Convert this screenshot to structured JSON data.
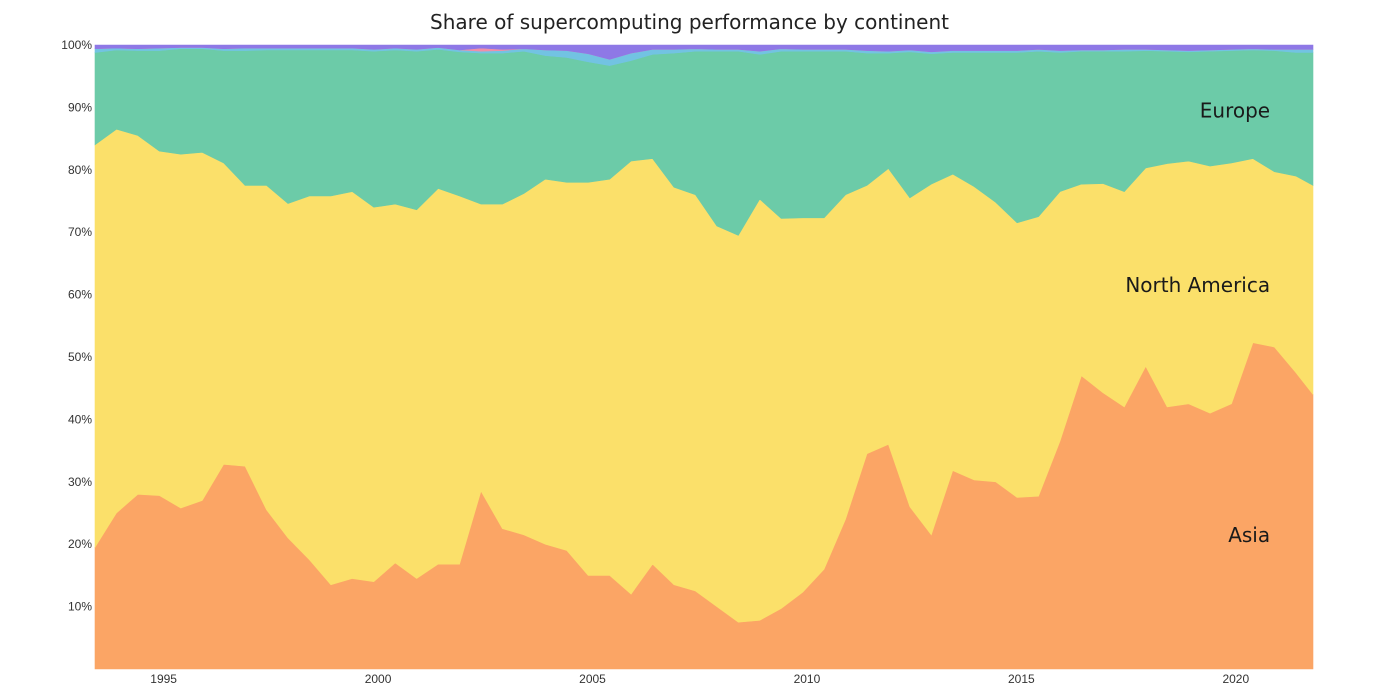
{
  "chart_data": {
    "type": "area",
    "stacked": true,
    "normalized": true,
    "title": "Share of supercomputing performance by continent",
    "xlabel": "",
    "ylabel": "",
    "xlim": [
      1993.4,
      2021.8
    ],
    "ylim": [
      0,
      100
    ],
    "grid": false,
    "legend": "none",
    "x_ticks": [
      {
        "value": 1995,
        "label": "1995"
      },
      {
        "value": 2000,
        "label": "2000"
      },
      {
        "value": 2005,
        "label": "2005"
      },
      {
        "value": 2010,
        "label": "2010"
      },
      {
        "value": 2015,
        "label": "2015"
      },
      {
        "value": 2020,
        "label": "2020"
      }
    ],
    "y_ticks": [
      {
        "value": 10,
        "label": "10%"
      },
      {
        "value": 20,
        "label": "20%"
      },
      {
        "value": 30,
        "label": "30%"
      },
      {
        "value": 40,
        "label": "40%"
      },
      {
        "value": 50,
        "label": "50%"
      },
      {
        "value": 60,
        "label": "60%"
      },
      {
        "value": 70,
        "label": "70%"
      },
      {
        "value": 80,
        "label": "80%"
      },
      {
        "value": 90,
        "label": "90%"
      },
      {
        "value": 100,
        "label": "100%"
      }
    ],
    "x": [
      1993.4,
      1993.9,
      1994.4,
      1994.9,
      1995.4,
      1995.9,
      1996.4,
      1996.9,
      1997.4,
      1997.9,
      1998.4,
      1998.9,
      1999.4,
      1999.9,
      2000.4,
      2000.9,
      2001.4,
      2001.9,
      2002.4,
      2002.9,
      2003.4,
      2003.9,
      2004.4,
      2004.9,
      2005.4,
      2005.9,
      2006.4,
      2006.9,
      2007.4,
      2007.9,
      2008.4,
      2008.9,
      2009.4,
      2009.9,
      2010.4,
      2010.9,
      2011.4,
      2011.9,
      2012.4,
      2012.9,
      2013.4,
      2013.9,
      2014.4,
      2014.9,
      2015.4,
      2015.9,
      2016.4,
      2016.9,
      2017.4,
      2017.9,
      2018.4,
      2018.9,
      2019.4,
      2019.9,
      2020.4,
      2020.9,
      2021.4,
      2021.8
    ],
    "series": [
      {
        "name": "Asia",
        "color": "#fba565",
        "values": [
          19.5,
          25,
          28,
          27.8,
          25.8,
          27,
          32.8,
          32.5,
          25.5,
          21,
          17.5,
          13.5,
          14.5,
          14,
          17,
          14.5,
          16.8,
          16.8,
          28.5,
          22.5,
          21.5,
          20,
          19,
          15,
          15,
          12,
          16.8,
          13.5,
          12.5,
          10,
          7.5,
          7.8,
          9.7,
          12.3,
          16,
          24,
          34.5,
          36,
          26,
          21.5,
          31.8,
          30.3,
          30,
          27.5,
          27.7,
          36.5,
          47,
          44.3,
          42,
          48.5,
          42,
          42.5,
          41,
          42.5,
          52.3,
          51.6,
          47.5,
          44
        ]
      },
      {
        "name": "North America",
        "color": "#fbe06a",
        "values": [
          64.5,
          61.5,
          57.5,
          55.2,
          56.7,
          55.8,
          48.3,
          45,
          52,
          53.6,
          58.3,
          62.3,
          62,
          60,
          57.5,
          59.1,
          60.2,
          59,
          46,
          52,
          54.7,
          58.5,
          59,
          63,
          63.5,
          69.4,
          65,
          63.7,
          63.5,
          61,
          62,
          67.5,
          62.5,
          60,
          56.3,
          52,
          43,
          44.2,
          49.5,
          56.2,
          47.5,
          47,
          44.8,
          44,
          44.8,
          40,
          30.7,
          33.5,
          34.5,
          31.8,
          39,
          38.9,
          39.6,
          38.6,
          29.5,
          28.1,
          31.5,
          33.5
        ]
      },
      {
        "name": "Europe",
        "color": "#6ccba8",
        "values": [
          14.8,
          12.7,
          13.6,
          16.1,
          16.9,
          16.6,
          18,
          21.6,
          21.7,
          24.6,
          23.4,
          23.4,
          22.7,
          25,
          24.7,
          25.4,
          22.3,
          23.1,
          24.2,
          24.2,
          22.8,
          19.8,
          20,
          19.3,
          18.2,
          16.1,
          16.7,
          21.5,
          23,
          28,
          29.5,
          23.2,
          26.8,
          26.7,
          26.7,
          23,
          21.2,
          18.5,
          23.4,
          20.9,
          19.5,
          21.5,
          24,
          27.3,
          26.5,
          22.3,
          21.3,
          21.2,
          22.5,
          18.8,
          18,
          17.5,
          18.4,
          18,
          17.4,
          19.4,
          19.8,
          21.3
        ]
      },
      {
        "name": "",
        "color": "#72c3e2",
        "values": [
          0.6,
          0.3,
          0.3,
          0.4,
          0.2,
          0.2,
          0.3,
          0.4,
          0.3,
          0.3,
          0.3,
          0.3,
          0.3,
          0.3,
          0.3,
          0.3,
          0.3,
          0.3,
          0.3,
          0.4,
          0.4,
          0.9,
          1.1,
          1.3,
          1,
          1.2,
          0.8,
          0.6,
          0.4,
          0.3,
          0.3,
          0.5,
          0.4,
          0.3,
          0.3,
          0.3,
          0.4,
          0.3,
          0.3,
          0.3,
          0.3,
          0.3,
          0.3,
          0.3,
          0.3,
          0.3,
          0.2,
          0.2,
          0.3,
          0.2,
          0.2,
          0.2,
          0.2,
          0.2,
          0.2,
          0.2,
          0.5,
          0.5
        ]
      },
      {
        "name": "",
        "color": "#f08fa8",
        "values": [
          0,
          0,
          0,
          0,
          0,
          0,
          0,
          0,
          0,
          0,
          0,
          0,
          0,
          0,
          0,
          0,
          0,
          0,
          0.5,
          0.2,
          0,
          0,
          0,
          0,
          0,
          0,
          0,
          0,
          0,
          0,
          0,
          0,
          0,
          0,
          0,
          0,
          0,
          0,
          0,
          0,
          0,
          0,
          0,
          0,
          0,
          0,
          0,
          0,
          0,
          0,
          0,
          0,
          0,
          0,
          0,
          0,
          0,
          0
        ]
      },
      {
        "name": "",
        "color": "#8e78e6",
        "values": [
          0.6,
          0.5,
          0.6,
          0.5,
          0.4,
          0.4,
          0.6,
          0.5,
          0.5,
          0.5,
          0.5,
          0.5,
          0.5,
          0.7,
          0.5,
          0.7,
          0.4,
          0.8,
          0.5,
          0.7,
          0.6,
          0.8,
          0.9,
          1.4,
          2.3,
          1.3,
          0.7,
          0.7,
          0.6,
          0.7,
          0.7,
          1,
          0.6,
          0.7,
          0.7,
          0.7,
          0.9,
          1,
          0.8,
          1.1,
          0.9,
          0.9,
          0.9,
          0.9,
          0.7,
          0.9,
          0.8,
          0.8,
          0.7,
          0.7,
          0.8,
          0.9,
          0.8,
          0.7,
          0.6,
          0.7,
          0.7,
          0.7
        ]
      }
    ],
    "annotations": [
      {
        "text": "Europe",
        "x": 2020.8,
        "y": 89.5
      },
      {
        "text": "North America",
        "x": 2020.8,
        "y": 61.5
      },
      {
        "text": "Asia",
        "x": 2020.8,
        "y": 21.5
      }
    ]
  }
}
